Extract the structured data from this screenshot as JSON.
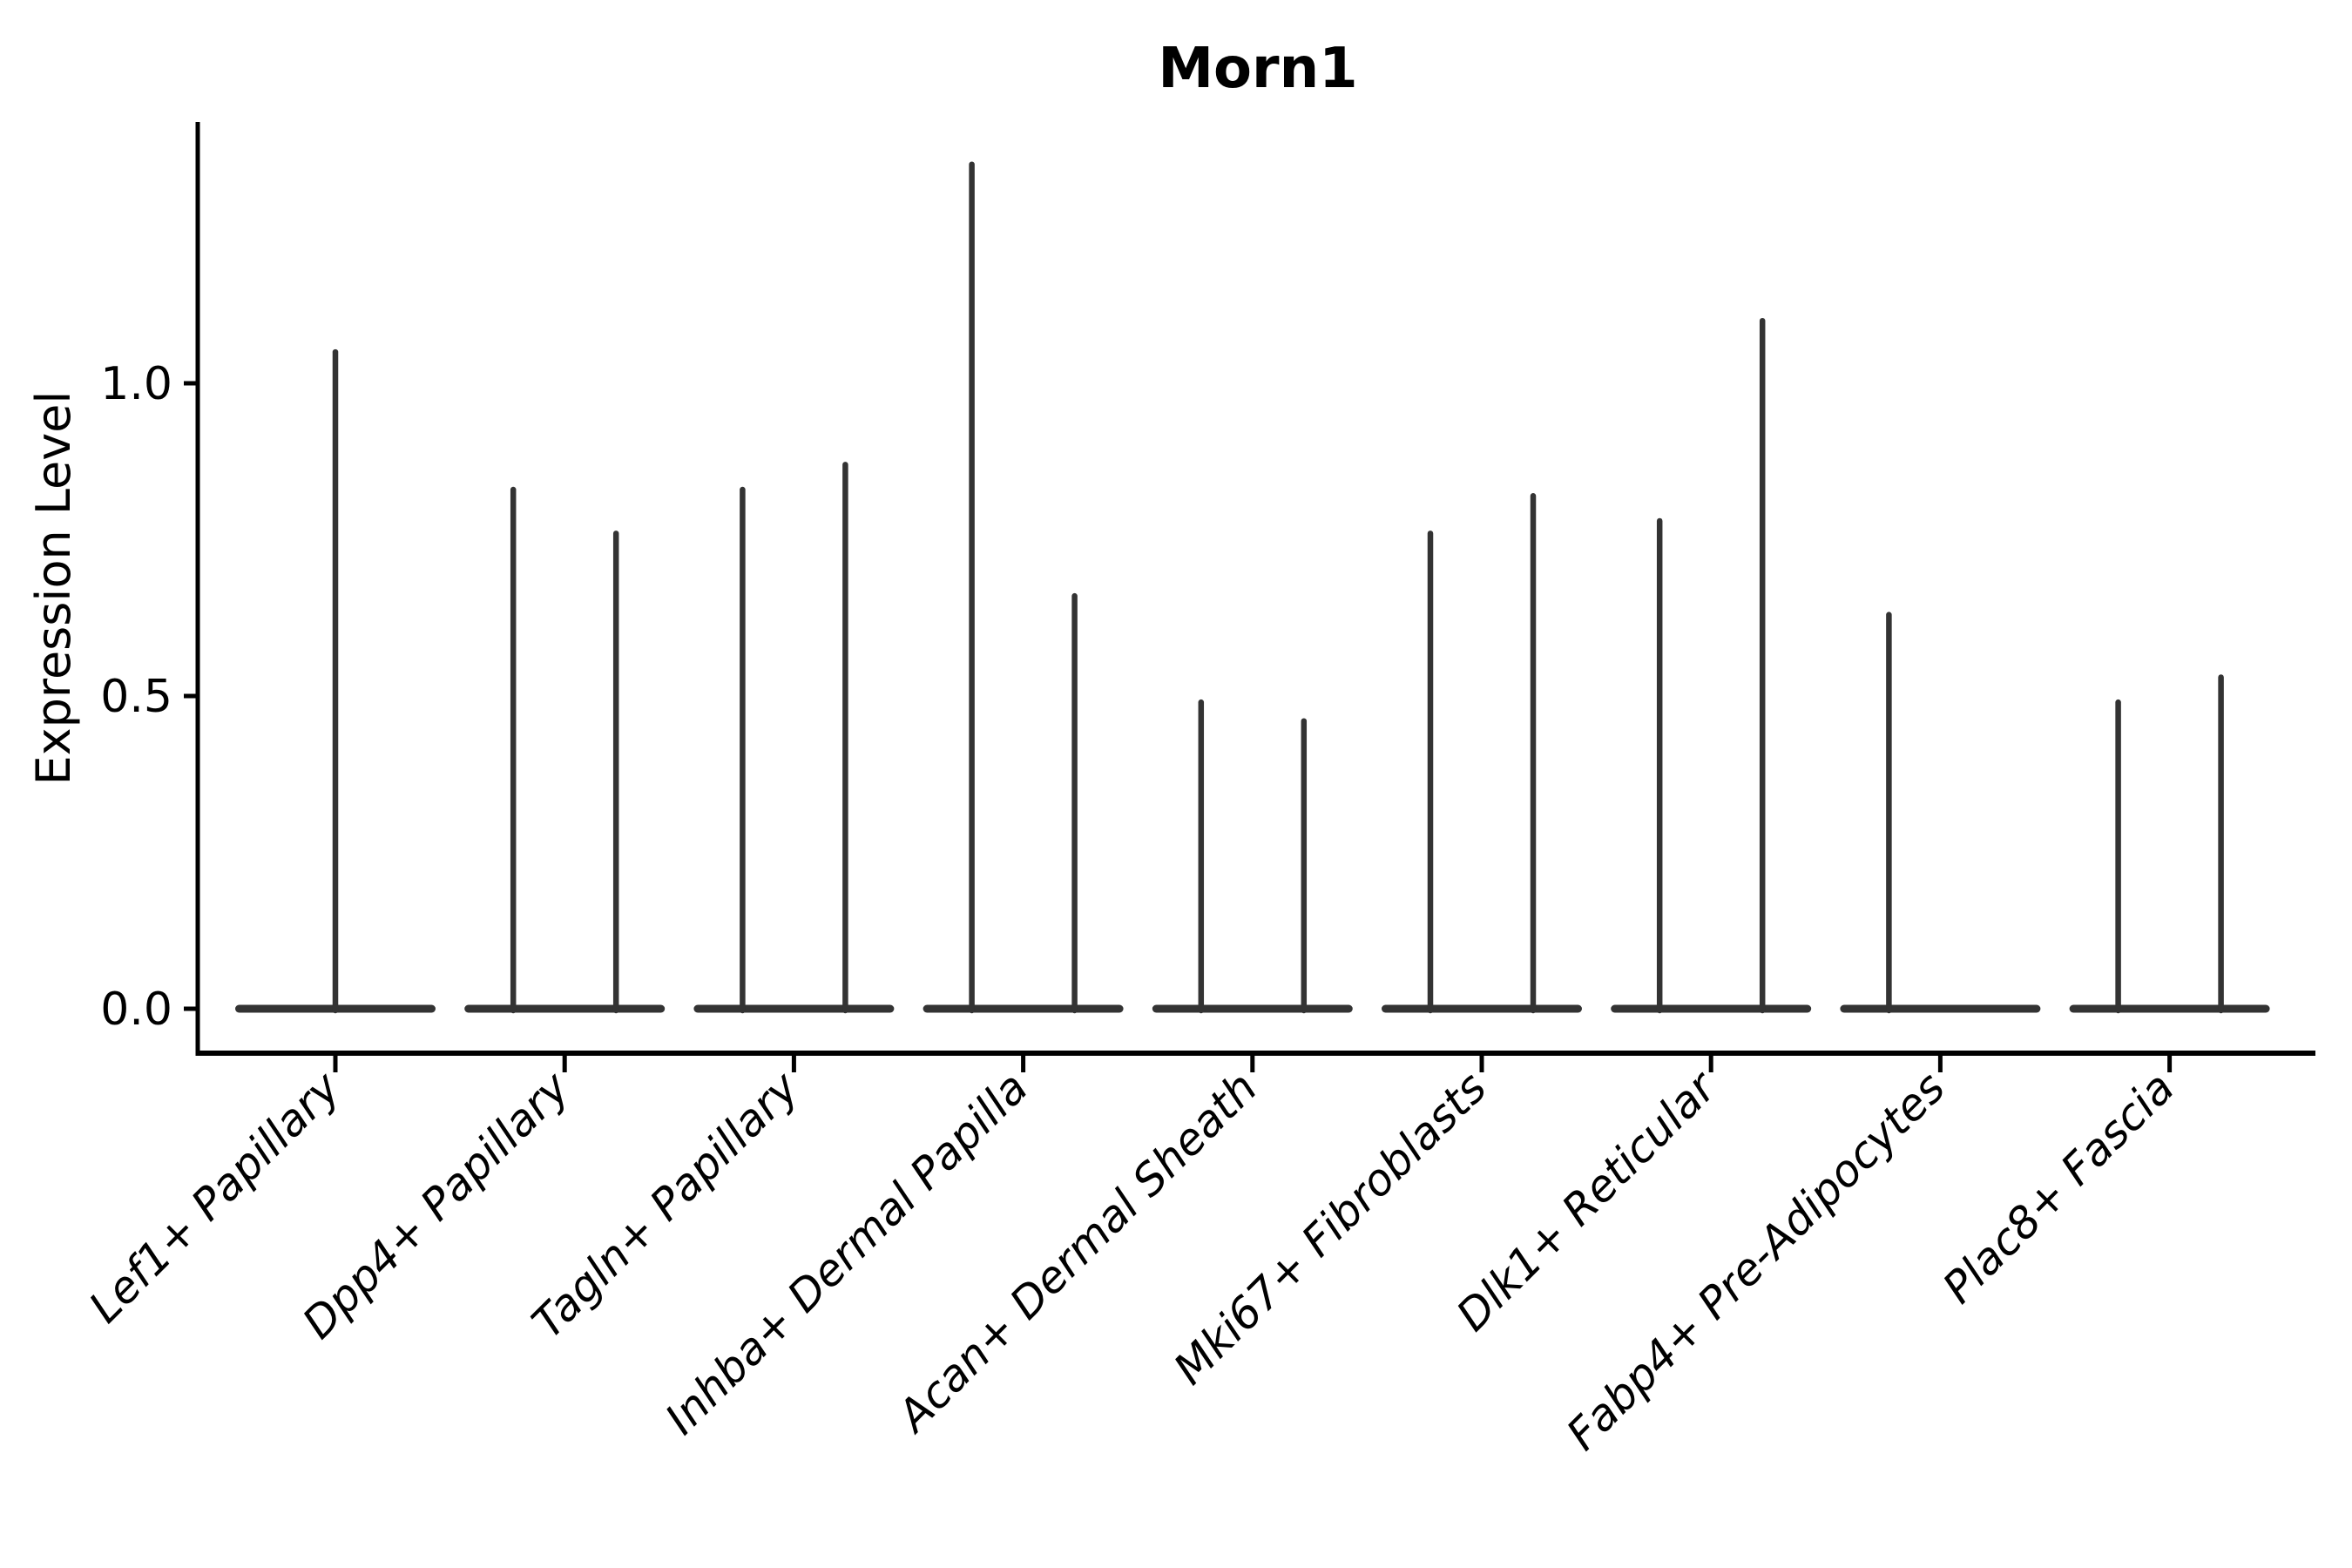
{
  "chart_data": {
    "type": "violin",
    "title": "Morn1",
    "ylabel": "Expression Level",
    "xlabel": "",
    "ylim": [
      -0.07,
      1.42
    ],
    "yticks": [
      0.0,
      0.5,
      1.0
    ],
    "ytick_labels": [
      "0.0",
      "0.5",
      "1.0"
    ],
    "grid": false,
    "legend": "none",
    "x_label_rotation_deg": 45,
    "description": "Violin plot of Morn1 expression per fibroblast cluster; each violin is flat at 0 with thin needles rising to the maximum expression. Categories 2-9 contain two adjacent half-width violins (two needles); category 1 has a single centered violin; the second violin of Fabp4+ Pre-Adipocytes has maximum 0 (no needle).",
    "categories": [
      "Lef1+ Papillary",
      "Dpp4+ Papillary",
      "Tagln+ Papillary",
      "Inhba+ Dermal Papilla",
      "Acan+ Dermal Sheath",
      "Mki67+ Fibroblasts",
      "Dlk1+ Reticular",
      "Fabp4+ Pre-Adipocytes",
      "Plac8+ Fascia"
    ],
    "violins": [
      {
        "category": "Lef1+ Papillary",
        "maxima": [
          1.05
        ]
      },
      {
        "category": "Dpp4+ Papillary",
        "maxima": [
          0.83,
          0.76
        ]
      },
      {
        "category": "Tagln+ Papillary",
        "maxima": [
          0.83,
          0.87
        ]
      },
      {
        "category": "Inhba+ Dermal Papilla",
        "maxima": [
          1.35,
          0.66
        ]
      },
      {
        "category": "Acan+ Dermal Sheath",
        "maxima": [
          0.49,
          0.46
        ]
      },
      {
        "category": "Mki67+ Fibroblasts",
        "maxima": [
          0.76,
          0.82
        ]
      },
      {
        "category": "Dlk1+ Reticular",
        "maxima": [
          0.78,
          1.1
        ]
      },
      {
        "category": "Fabp4+ Pre-Adipocytes",
        "maxima": [
          0.63,
          0.0
        ]
      },
      {
        "category": "Plac8+ Fascia",
        "maxima": [
          0.49,
          0.53
        ]
      }
    ],
    "colors": {
      "violin": "#333333",
      "axis": "#000000",
      "text": "#000000",
      "background": "#ffffff"
    }
  }
}
